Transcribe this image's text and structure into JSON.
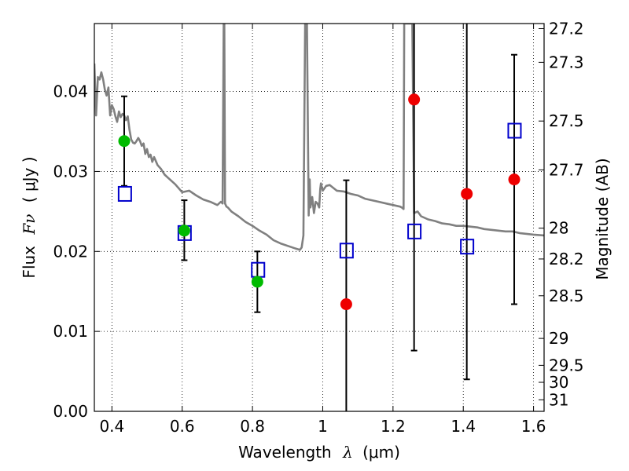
{
  "chart_data": {
    "type": "scatter",
    "xlabel": {
      "prefix": "Wavelength",
      "symbol": "λ",
      "unit": "(μm)"
    },
    "ylabel": {
      "prefix": "Flux",
      "symbol": "Fν",
      "unit": "( μJy )"
    },
    "y2label": "Magnitude (AB)",
    "xlim": [
      0.35,
      1.63
    ],
    "ylim": [
      0.0,
      0.0485
    ],
    "grid": true,
    "x_ticks": [
      0.4,
      0.6,
      0.8,
      1.0,
      1.2,
      1.4,
      1.6
    ],
    "x_tick_labels": [
      "0.4",
      "0.6",
      "0.8",
      "1",
      "1.2",
      "1.4",
      "1.6"
    ],
    "y_ticks": [
      0.0,
      0.01,
      0.02,
      0.03,
      0.04
    ],
    "y_tick_labels": [
      "0.00",
      "0.01",
      "0.02",
      "0.03",
      "0.04"
    ],
    "magnitude_ticks": [
      {
        "label": "27.2",
        "mag": 27.2
      },
      {
        "label": "27.3",
        "mag": 27.3
      },
      {
        "label": "27.5",
        "mag": 27.5
      },
      {
        "label": "27.7",
        "mag": 27.7
      },
      {
        "label": "28",
        "mag": 28.0
      },
      {
        "label": "28.2",
        "mag": 28.2
      },
      {
        "label": "28.5",
        "mag": 28.5
      },
      {
        "label": "29",
        "mag": 29.0
      },
      {
        "label": "29.5",
        "mag": 29.5
      },
      {
        "label": "30",
        "mag": 30.0
      },
      {
        "label": "31",
        "mag": 31.0
      }
    ],
    "colors": {
      "model": "#808080",
      "observed_optical": "#00bb00",
      "observed_nir": "#ee0000",
      "model_bands": "#0000cc",
      "errorbar": "#000000"
    },
    "model_spectrum": {
      "x": [
        0.35,
        0.355,
        0.36,
        0.365,
        0.37,
        0.375,
        0.38,
        0.385,
        0.39,
        0.395,
        0.4,
        0.405,
        0.41,
        0.415,
        0.42,
        0.425,
        0.43,
        0.435,
        0.44,
        0.445,
        0.45,
        0.455,
        0.46,
        0.465,
        0.47,
        0.475,
        0.48,
        0.485,
        0.49,
        0.495,
        0.5,
        0.505,
        0.51,
        0.515,
        0.52,
        0.53,
        0.54,
        0.55,
        0.56,
        0.58,
        0.6,
        0.62,
        0.64,
        0.66,
        0.68,
        0.7,
        0.71,
        0.715,
        0.718,
        0.72,
        0.722,
        0.726,
        0.73,
        0.74,
        0.76,
        0.78,
        0.8,
        0.82,
        0.84,
        0.86,
        0.88,
        0.9,
        0.92,
        0.935,
        0.94,
        0.945,
        0.95,
        0.955,
        0.96,
        0.963,
        0.965,
        0.97,
        0.975,
        0.98,
        0.985,
        0.99,
        0.993,
        0.995,
        1.0,
        1.01,
        1.02,
        1.04,
        1.06,
        1.08,
        1.1,
        1.12,
        1.14,
        1.16,
        1.18,
        1.2,
        1.22,
        1.225,
        1.23,
        1.232,
        1.235,
        1.24,
        1.245,
        1.25,
        1.255,
        1.26,
        1.27,
        1.28,
        1.3,
        1.32,
        1.34,
        1.36,
        1.38,
        1.4,
        1.42,
        1.44,
        1.46,
        1.48,
        1.5,
        1.52,
        1.54,
        1.56,
        1.58,
        1.6,
        1.63
      ],
      "y": [
        0.0435,
        0.037,
        0.0418,
        0.0415,
        0.0424,
        0.0415,
        0.0402,
        0.0395,
        0.0405,
        0.037,
        0.0383,
        0.0378,
        0.0369,
        0.0362,
        0.0375,
        0.0368,
        0.0372,
        0.037,
        0.0364,
        0.0369,
        0.0352,
        0.034,
        0.0336,
        0.0335,
        0.0338,
        0.0342,
        0.0338,
        0.0332,
        0.0335,
        0.0322,
        0.0328,
        0.0318,
        0.0321,
        0.0312,
        0.0318,
        0.0308,
        0.0303,
        0.0296,
        0.0292,
        0.0284,
        0.0274,
        0.0276,
        0.027,
        0.0265,
        0.0262,
        0.0258,
        0.0262,
        0.026,
        0.0485,
        0.0485,
        0.026,
        0.0256,
        0.0255,
        0.025,
        0.0244,
        0.0237,
        0.0232,
        0.0226,
        0.0221,
        0.0214,
        0.021,
        0.0207,
        0.0204,
        0.0202,
        0.0205,
        0.022,
        0.0485,
        0.0485,
        0.0245,
        0.029,
        0.0255,
        0.0268,
        0.0248,
        0.0262,
        0.026,
        0.0255,
        0.0278,
        0.0285,
        0.0276,
        0.0282,
        0.0283,
        0.0276,
        0.0275,
        0.0272,
        0.027,
        0.0266,
        0.0264,
        0.0262,
        0.026,
        0.0258,
        0.0256,
        0.0255,
        0.0253,
        0.0485,
        0.0485,
        0.0485,
        0.0485,
        0.0485,
        0.0485,
        0.0248,
        0.025,
        0.0244,
        0.024,
        0.0238,
        0.0235,
        0.0234,
        0.0232,
        0.0232,
        0.0231,
        0.023,
        0.0228,
        0.0227,
        0.0226,
        0.0225,
        0.0225,
        0.0223,
        0.0222,
        0.0221,
        0.022
      ]
    },
    "observed_points": [
      {
        "x": 0.435,
        "y": 0.0338,
        "err_low": 0.0056,
        "err_high": 0.0056,
        "band": "optical"
      },
      {
        "x": 0.606,
        "y": 0.0226,
        "err_low": 0.0037,
        "err_high": 0.0038,
        "band": "optical"
      },
      {
        "x": 0.814,
        "y": 0.0162,
        "err_low": 0.0038,
        "err_high": 0.0038,
        "band": "optical"
      },
      {
        "x": 1.067,
        "y": 0.0134,
        "err_low": 0.0155,
        "err_high": 0.0155,
        "band": "nir"
      },
      {
        "x": 1.26,
        "y": 0.039,
        "err_low": 0.0314,
        "err_high": 0.0314,
        "band": "nir"
      },
      {
        "x": 1.41,
        "y": 0.0272,
        "err_low": 0.0232,
        "err_high": 0.0232,
        "band": "nir"
      },
      {
        "x": 1.545,
        "y": 0.029,
        "err_low": 0.0156,
        "err_high": 0.0156,
        "band": "nir"
      }
    ],
    "model_band_points": [
      {
        "x": 0.437,
        "y": 0.0272
      },
      {
        "x": 0.607,
        "y": 0.0223
      },
      {
        "x": 0.816,
        "y": 0.0177
      },
      {
        "x": 1.068,
        "y": 0.0201
      },
      {
        "x": 1.261,
        "y": 0.0225
      },
      {
        "x": 1.411,
        "y": 0.0206
      },
      {
        "x": 1.546,
        "y": 0.0351
      }
    ]
  }
}
